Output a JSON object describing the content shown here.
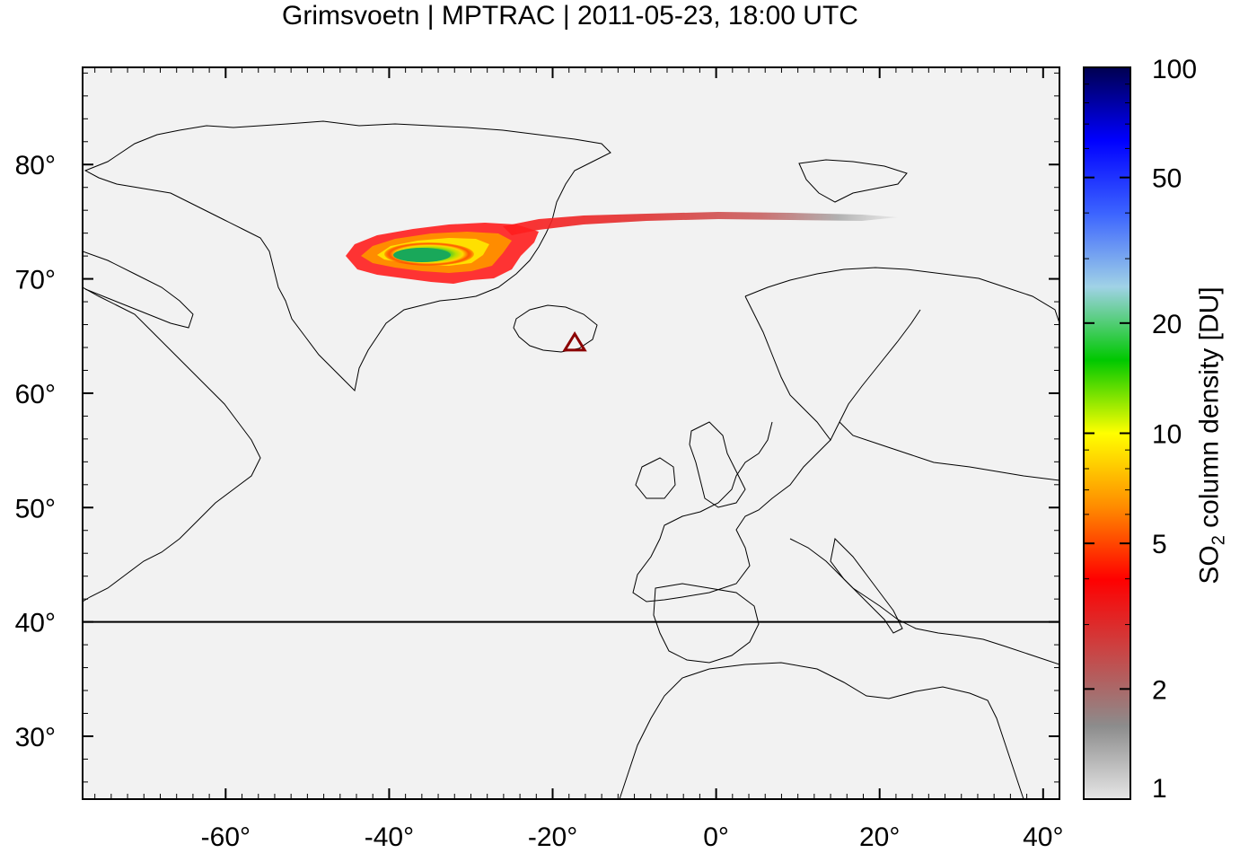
{
  "title": "Grimsvoetn | MPTRAC | 2011-05-23, 18:00 UTC",
  "map": {
    "x_ticks": [
      "-60°",
      "-40°",
      "-20°",
      "0°",
      "20°",
      "40°"
    ],
    "x_tick_values": [
      -60,
      -40,
      -20,
      0,
      20,
      40
    ],
    "y_ticks": [
      "80°",
      "70°",
      "60°",
      "50°",
      "40°",
      "30°"
    ],
    "y_tick_values": [
      80,
      70,
      60,
      50,
      40,
      30
    ],
    "lon_range": [
      -77.5,
      42
    ],
    "lat_range": [
      24.5,
      88.5
    ],
    "background_color": "#f2f2f2",
    "reference_latitude": 40,
    "volcano": {
      "name": "Grimsvoetn",
      "lon": -17.3,
      "lat": 64.4,
      "marker": "triangle-icon",
      "color": "#8b0000"
    }
  },
  "colorbar": {
    "label_main": "SO",
    "label_sub": "2",
    "label_rest": " column density [DU]",
    "ticks": [
      "100",
      "50",
      "20",
      "10",
      "5",
      "2",
      "1"
    ],
    "tick_values": [
      100,
      50,
      20,
      10,
      5,
      2,
      1
    ],
    "scale": "log",
    "colors": [
      "#e6e6e6",
      "#8c8c8c",
      "#c84646",
      "#ff0000",
      "#ff8c00",
      "#ffff00",
      "#00c800",
      "#a0d2e6",
      "#3c64ff",
      "#0000ff",
      "#000050"
    ]
  },
  "chart_data": {
    "type": "heatmap",
    "title": "Grimsvoetn | MPTRAC | 2011-05-23, 18:00 UTC",
    "colorbar_label": "SO2 column density [DU]",
    "x_axis": "longitude",
    "y_axis": "latitude",
    "xlim": [
      -77.5,
      42
    ],
    "ylim": [
      24.5,
      88.5
    ],
    "plume": [
      {
        "lon": -42,
        "lat": 71.5,
        "du": 8
      },
      {
        "lon": -35,
        "lat": 71.8,
        "du": 18
      },
      {
        "lon": -30,
        "lat": 71.5,
        "du": 12
      },
      {
        "lon": -27,
        "lat": 72.5,
        "du": 7
      },
      {
        "lon": -23,
        "lat": 74.0,
        "du": 5
      },
      {
        "lon": -15,
        "lat": 74.8,
        "du": 4
      },
      {
        "lon": -5,
        "lat": 75.0,
        "du": 2.5
      },
      {
        "lon": 5,
        "lat": 75.2,
        "du": 2
      },
      {
        "lon": 15,
        "lat": 75.1,
        "du": 1.5
      }
    ]
  }
}
